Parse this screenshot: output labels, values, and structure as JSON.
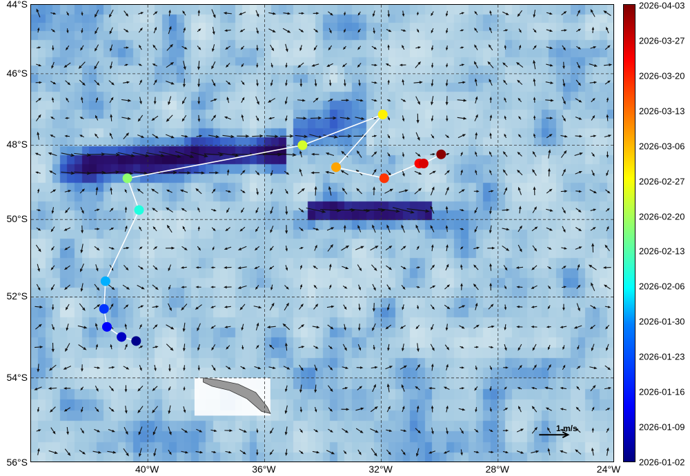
{
  "map": {
    "lon_range": [
      -44,
      -24
    ],
    "lat_range": [
      -56,
      -44
    ],
    "x_ticks": [
      "40°W",
      "36°W",
      "32°W",
      "28°W",
      "24°W"
    ],
    "y_ticks": [
      "44°S",
      "46°S",
      "48°S",
      "50°S",
      "52°S",
      "54°S",
      "56°S"
    ],
    "background": "surface current speed (blue shading) with velocity arrows",
    "land": "South Georgia (grey)",
    "track_color": "#ffffff"
  },
  "scale": {
    "label": "1 m/s"
  },
  "colorbar": {
    "colormap": "jet",
    "labels": [
      "2026-04-03",
      "2026-03-27",
      "2026-03-20",
      "2026-03-13",
      "2026-03-06",
      "2026-02-27",
      "2026-02-20",
      "2026-02-13",
      "2026-02-06",
      "2026-01-30",
      "2026-01-23",
      "2026-01-16",
      "2026-01-09",
      "2026-01-02"
    ],
    "range": [
      "2026-01-02",
      "2026-04-03"
    ]
  },
  "chart_data": {
    "type": "scatter",
    "track": [
      {
        "lon": -40.4,
        "lat": -53.1,
        "date": "2026-01-03"
      },
      {
        "lon": -40.9,
        "lat": -53.0,
        "date": "2026-01-08"
      },
      {
        "lon": -41.4,
        "lat": -52.75,
        "date": "2026-01-13"
      },
      {
        "lon": -41.5,
        "lat": -52.3,
        "date": "2026-01-18"
      },
      {
        "lon": -41.45,
        "lat": -51.6,
        "date": "2026-01-29"
      },
      {
        "lon": -40.3,
        "lat": -49.75,
        "date": "2026-02-08"
      },
      {
        "lon": -40.7,
        "lat": -48.9,
        "date": "2026-02-18"
      },
      {
        "lon": -34.7,
        "lat": -48.0,
        "date": "2026-02-24"
      },
      {
        "lon": -31.95,
        "lat": -47.15,
        "date": "2026-03-01"
      },
      {
        "lon": -33.55,
        "lat": -48.6,
        "date": "2026-03-08"
      },
      {
        "lon": -31.9,
        "lat": -48.9,
        "date": "2026-03-18"
      },
      {
        "lon": -30.7,
        "lat": -48.5,
        "date": "2026-03-23"
      },
      {
        "lon": -30.55,
        "lat": -48.5,
        "date": "2026-03-26"
      },
      {
        "lon": -29.95,
        "lat": -48.25,
        "date": "2026-04-02"
      }
    ]
  }
}
